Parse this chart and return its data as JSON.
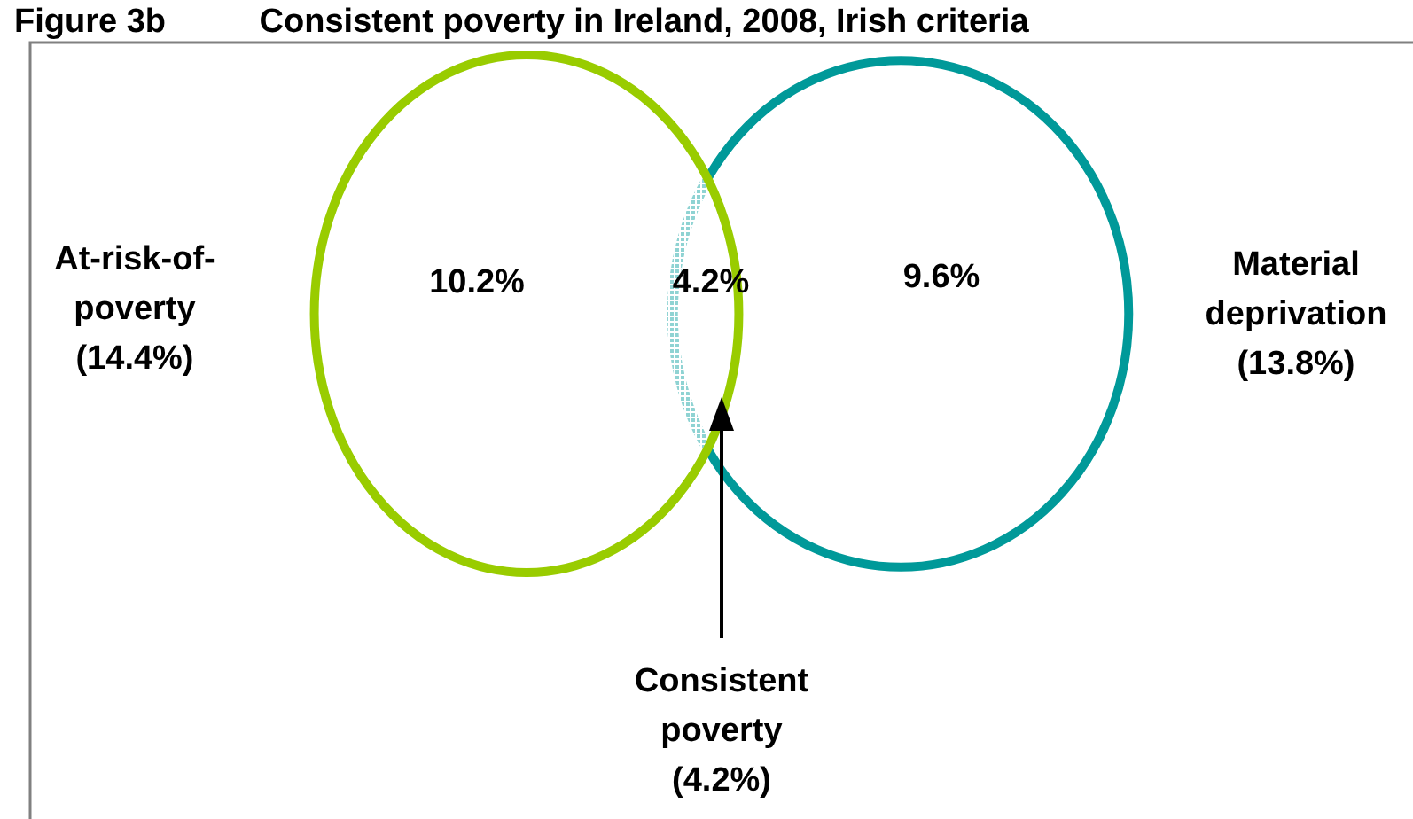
{
  "chart_data": {
    "type": "other",
    "title": "Figure 3b          Consistent poverty in Ireland, 2008, Irish criteria",
    "categories": [
      null,
      null,
      null
    ],
    "values": [
      10.2,
      4.2,
      9.6
    ],
    "value_labels": [
      "10.2%",
      "4.2%",
      "9.6%"
    ],
    "colors": [
      "#99cc00",
      "#8fd3d3",
      "#009999"
    ],
    "annotations": [
      "At-risk-of-\npoverty\n(14.4%)",
      "Material\ndeprivation\n(13.8%)",
      "Consistent\npoverty\n(4.2%)"
    ]
  }
}
